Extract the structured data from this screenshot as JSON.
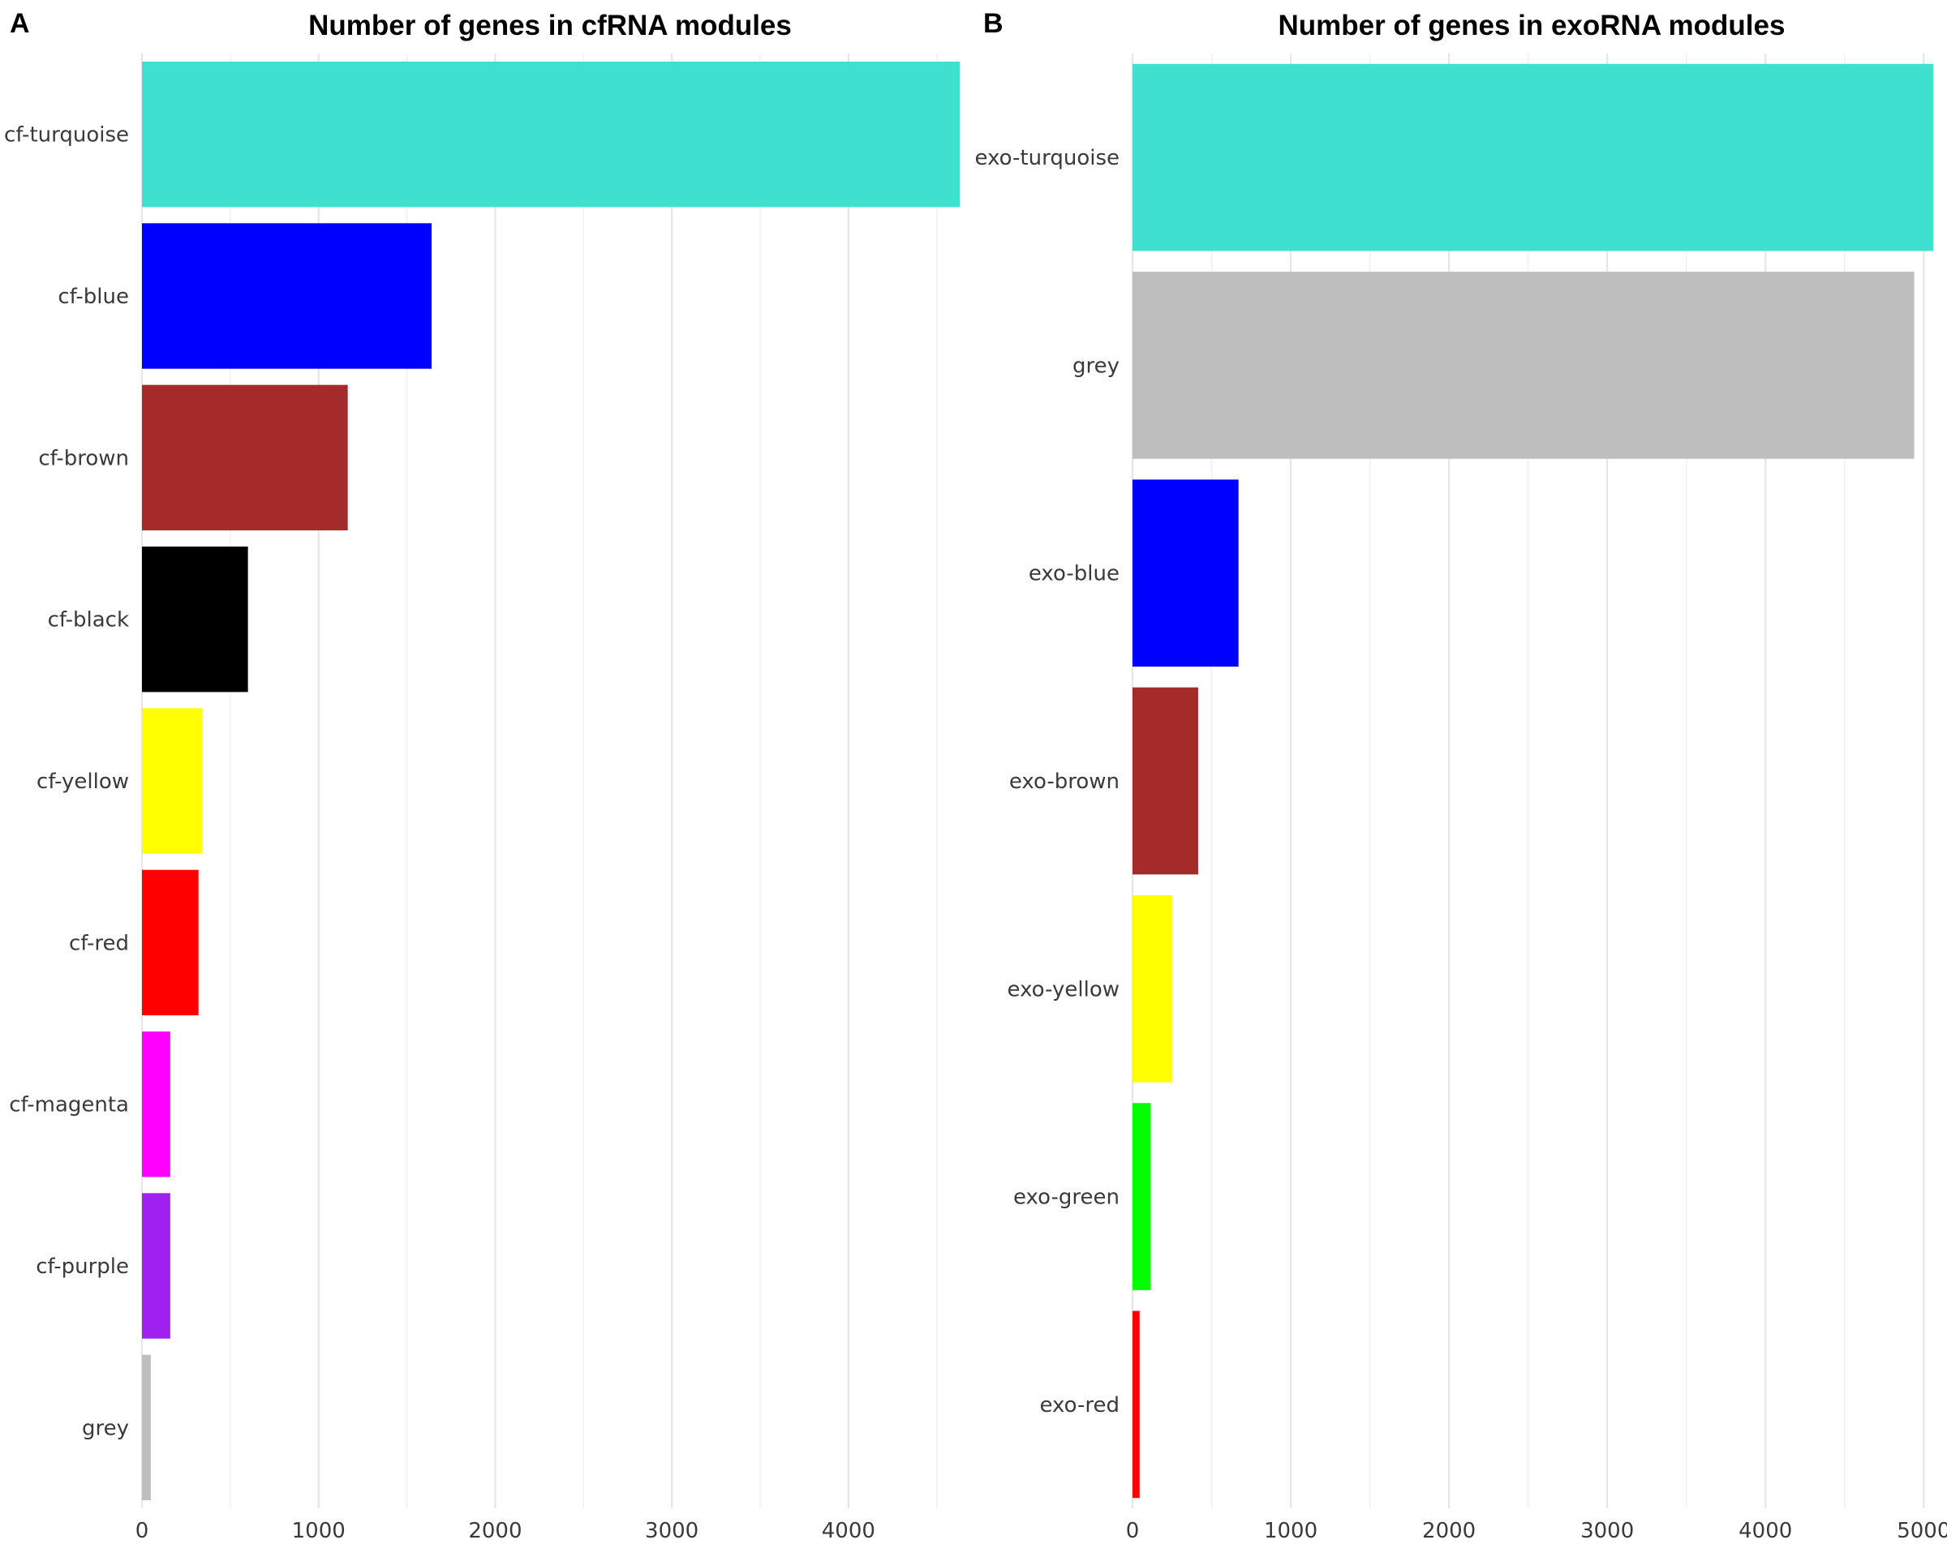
{
  "chart_data": [
    {
      "panel_label": "A",
      "type": "bar",
      "orientation": "horizontal",
      "title": "Number of genes in cfRNA modules",
      "xlabel": "",
      "ylabel": "",
      "categories": [
        "cf-turquoise",
        "cf-blue",
        "cf-brown",
        "cf-black",
        "cf-yellow",
        "cf-red",
        "cf-magenta",
        "cf-purple",
        "grey"
      ],
      "values": [
        4630,
        1640,
        1165,
        600,
        340,
        320,
        160,
        160,
        50
      ],
      "colors": [
        "#40E0D0",
        "#0000FF",
        "#A52A2A",
        "#000000",
        "#FFFF00",
        "#FF0000",
        "#FF00FF",
        "#A020F0",
        "#BEBEBE"
      ],
      "xlim": [
        0,
        4630
      ],
      "ticks": [
        0,
        1000,
        2000,
        3000,
        4000
      ],
      "grid": true,
      "legend": "none"
    },
    {
      "panel_label": "B",
      "type": "bar",
      "orientation": "horizontal",
      "title": "Number of genes in exoRNA modules",
      "xlabel": "",
      "ylabel": "",
      "categories": [
        "exo-turquoise",
        "grey",
        "exo-blue",
        "exo-brown",
        "exo-yellow",
        "exo-green",
        "exo-red"
      ],
      "values": [
        5060,
        4940,
        670,
        415,
        250,
        115,
        45
      ],
      "colors": [
        "#40E0D0",
        "#BEBEBE",
        "#0000FF",
        "#A52A2A",
        "#FFFF00",
        "#00FF00",
        "#FF0000"
      ],
      "xlim": [
        0,
        5060
      ],
      "ticks": [
        0,
        1000,
        2000,
        3000,
        4000,
        5000
      ],
      "grid": true,
      "legend": "none"
    }
  ]
}
